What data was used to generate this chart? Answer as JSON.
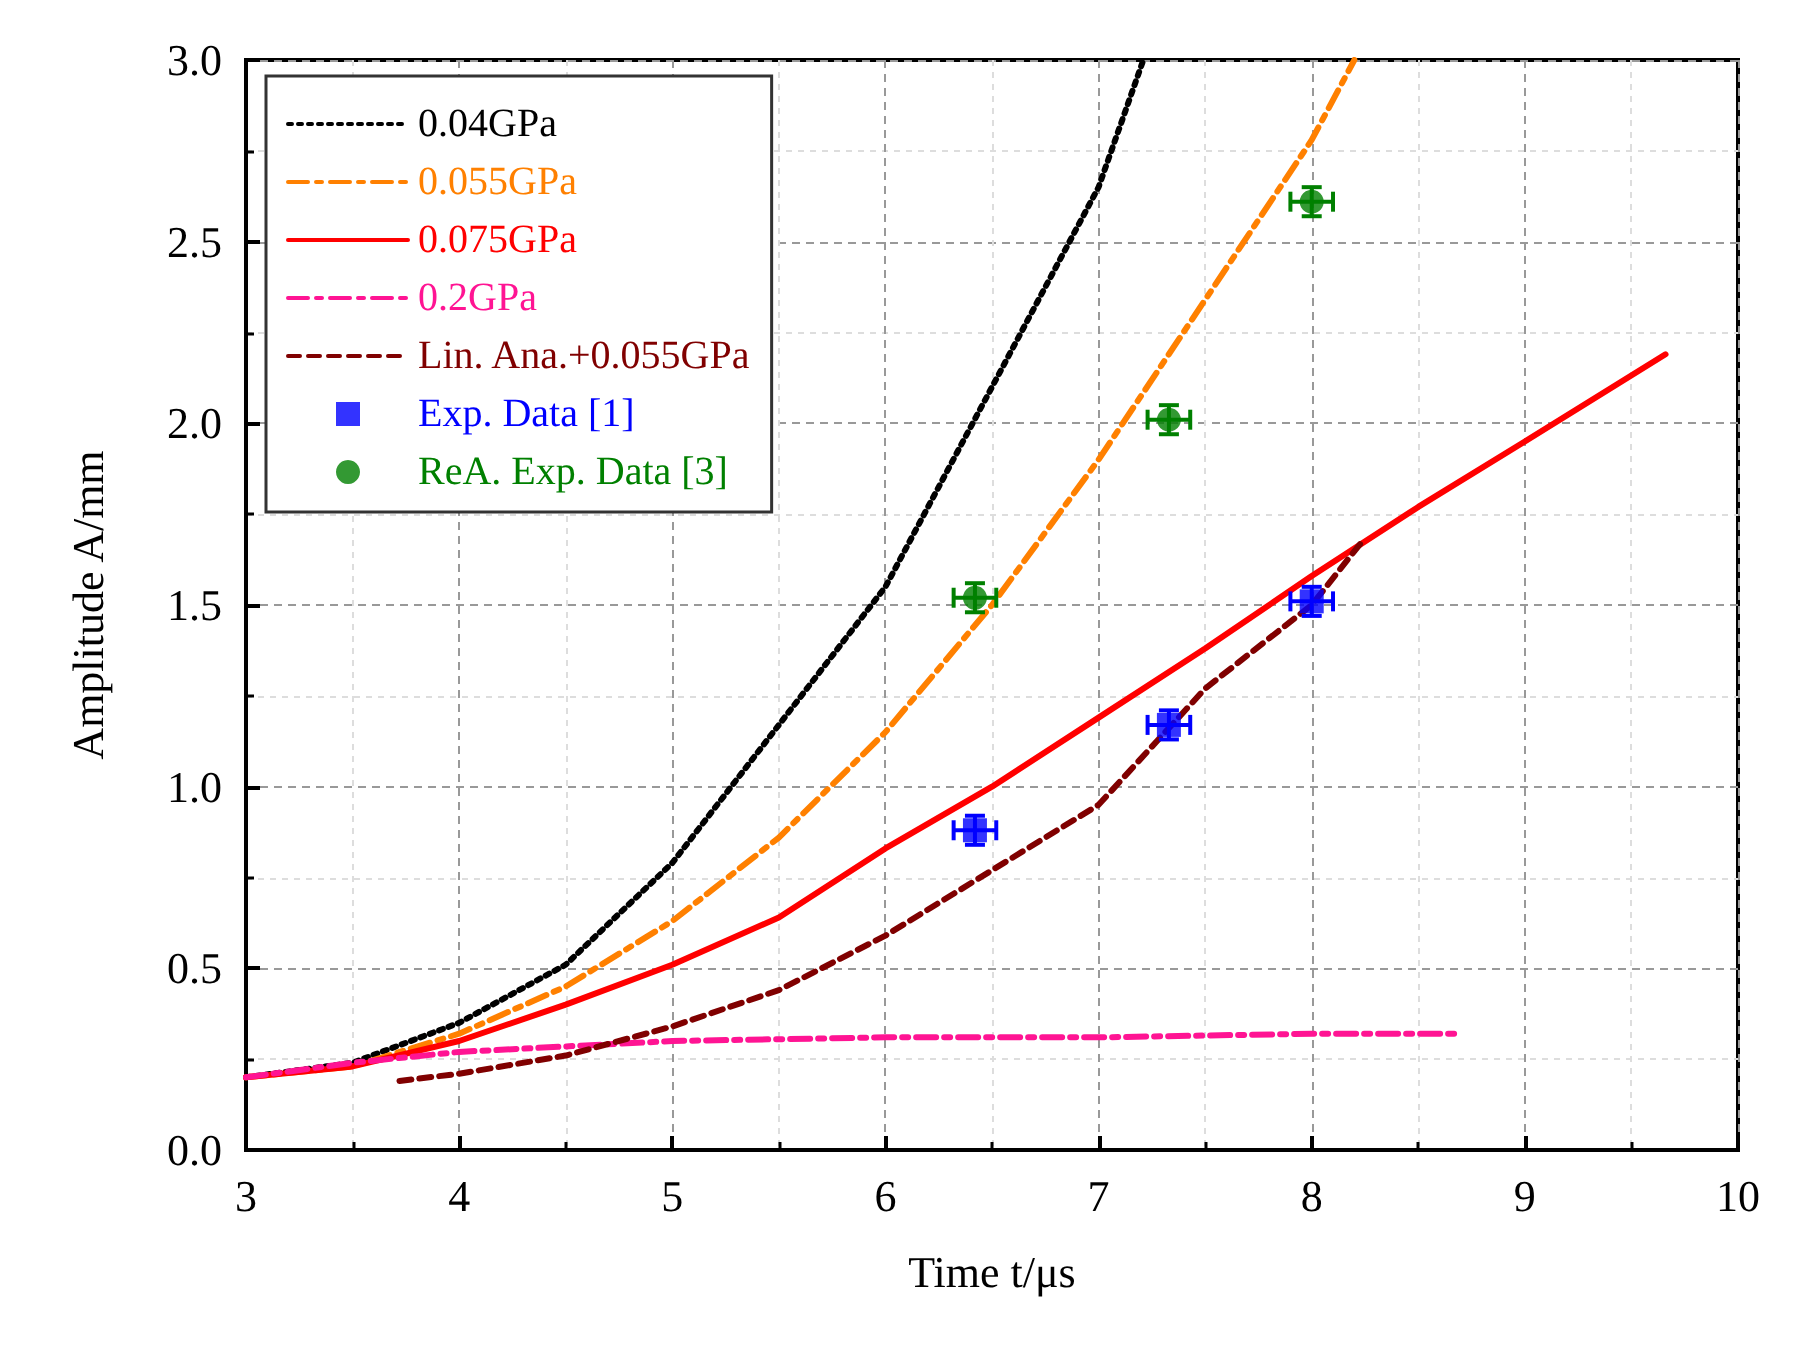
{
  "chart_data": {
    "type": "line",
    "xlabel": "Time t/μs",
    "ylabel": "Amplitude A/mm",
    "xlim": [
      3,
      10
    ],
    "xticks": [
      3,
      4,
      5,
      6,
      7,
      8,
      9,
      10
    ],
    "ylim": [
      0,
      3
    ],
    "yticks": [
      {
        "value": 0,
        "label": "0.0"
      },
      0.5,
      {
        "value": 1,
        "label": "1.0"
      },
      1.5,
      {
        "value": 2,
        "label": "2.0"
      },
      2.5,
      {
        "value": 3,
        "label": "3.0"
      }
    ],
    "grid": true,
    "legend": "top left",
    "series": [
      {
        "name": "0.04GPa",
        "color": "#000000",
        "line_style": "dotted",
        "x": [
          3,
          3.5,
          4,
          4.5,
          5,
          5.5,
          6,
          6.5,
          7,
          7.21
        ],
        "values": [
          0.2,
          0.24,
          0.35,
          0.51,
          0.79,
          1.17,
          1.55,
          2.1,
          2.65,
          3.0
        ]
      },
      {
        "name": "0.055GPa",
        "color": "#ff8000",
        "line_style": "dashdot",
        "x": [
          3,
          3.5,
          4,
          4.5,
          5,
          5.5,
          6,
          6.5,
          7,
          7.5,
          8,
          8.2
        ],
        "values": [
          0.2,
          0.23,
          0.32,
          0.45,
          0.63,
          0.86,
          1.15,
          1.5,
          1.9,
          2.34,
          2.78,
          3.0
        ]
      },
      {
        "name": "0.075GPa",
        "color": "#ff0000",
        "line_style": "solid",
        "x": [
          3,
          3.5,
          4,
          4.5,
          5,
          5.5,
          6,
          6.5,
          7,
          7.5,
          8,
          8.5,
          9,
          9.66
        ],
        "values": [
          0.2,
          0.23,
          0.3,
          0.4,
          0.51,
          0.64,
          0.83,
          1.0,
          1.19,
          1.38,
          1.58,
          1.77,
          1.95,
          2.19
        ]
      },
      {
        "name": "0.2GPa",
        "color": "#ff1493",
        "line_style": "dashdot",
        "x": [
          3,
          3.5,
          4,
          5,
          6,
          7,
          8,
          8.68
        ],
        "values": [
          0.2,
          0.24,
          0.27,
          0.3,
          0.31,
          0.31,
          0.32,
          0.32
        ]
      },
      {
        "name": "Lin. Ana.+0.055GPa",
        "color": "#800000",
        "line_style": "dashed",
        "x": [
          3.72,
          4,
          4.5,
          5,
          5.5,
          6,
          6.5,
          7,
          7.5,
          8,
          8.23
        ],
        "values": [
          0.19,
          0.21,
          0.26,
          0.34,
          0.44,
          0.59,
          0.77,
          0.95,
          1.27,
          1.5,
          1.67
        ]
      },
      {
        "name": "Exp. Data [1]",
        "type": "scatter",
        "marker": "square",
        "color": "#0000ff",
        "x": [
          6.42,
          7.33,
          8.0
        ],
        "values": [
          0.88,
          1.17,
          1.51
        ],
        "errors": [
          0.04,
          0.04,
          0.04
        ],
        "xerrors": [
          0.1,
          0.1,
          0.1
        ]
      },
      {
        "name": "ReA. Exp. Data [3]",
        "type": "scatter",
        "marker": "circle",
        "color": "#008000",
        "x": [
          6.42,
          7.33,
          8.0
        ],
        "values": [
          1.52,
          2.01,
          2.61
        ],
        "errors": [
          0.04,
          0.04,
          0.04
        ],
        "xerrors": [
          0.1,
          0.1,
          0.1
        ]
      }
    ]
  }
}
